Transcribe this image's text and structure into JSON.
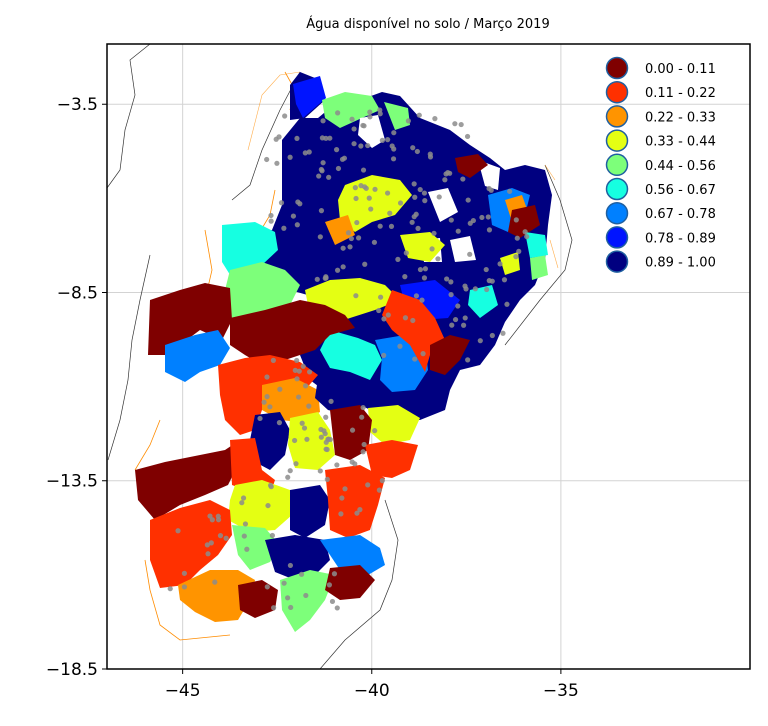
{
  "title": "Água disponível no solo / Março 2019",
  "axes": {
    "x_ticks": [
      {
        "value": -45,
        "label": "−45"
      },
      {
        "value": -40,
        "label": "−40"
      },
      {
        "value": -35,
        "label": "−35"
      }
    ],
    "y_ticks": [
      {
        "value": -3.5,
        "label": "−3.5"
      },
      {
        "value": -8.5,
        "label": "−8.5"
      },
      {
        "value": -13.5,
        "label": "−13.5"
      },
      {
        "value": -18.5,
        "label": "−18.5"
      }
    ],
    "xlim": [
      -47,
      -30
    ],
    "ylim": [
      -18.5,
      -1.9
    ],
    "grid": true
  },
  "legend": {
    "placement": "top-right",
    "entries": [
      {
        "label": "0.00 - 0.11",
        "color": "#7f0000"
      },
      {
        "label": "0.11 - 0.22",
        "color": "#ff3000"
      },
      {
        "label": "0.22 - 0.33",
        "color": "#ff9400"
      },
      {
        "label": "0.33 - 0.44",
        "color": "#e4ff13"
      },
      {
        "label": "0.44 - 0.56",
        "color": "#7dff7a"
      },
      {
        "label": "0.56 - 0.67",
        "color": "#16ffe1"
      },
      {
        "label": "0.67 - 0.78",
        "color": "#0080ff"
      },
      {
        "label": "0.78 - 0.89",
        "color": "#0014ff"
      },
      {
        "label": "0.89 - 1.00",
        "color": "#000080"
      }
    ]
  },
  "colors": {
    "background": "#ffffff",
    "outside_land": "#ffffff",
    "grid": "#d3d3d3",
    "station_points": "#8c8c8c",
    "state_borders": "#ff8c00"
  }
}
